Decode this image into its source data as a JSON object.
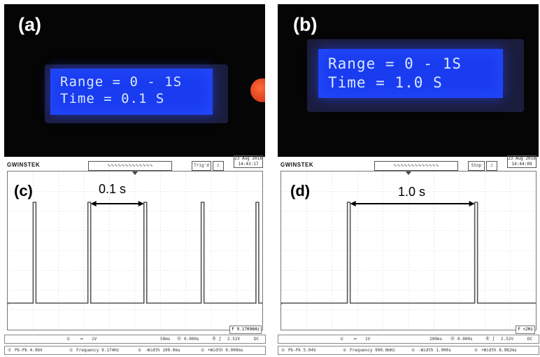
{
  "photos": [
    {
      "label": "(a)",
      "line1": "Range = 0 - 1S",
      "line2": "Time = 0.1 S"
    },
    {
      "label": "(b)",
      "line1": "Range = 0 - 1S",
      "line2": "Time = 1.0 S"
    }
  ],
  "scopes": [
    {
      "label": "(c)",
      "brand": "GWINSTEK",
      "mode": "Trig'd",
      "date": "23 Aug 2018",
      "time": "14:43:17",
      "annotation": "0.1 s",
      "ch_scale": "1V",
      "timebase": "50ms",
      "offset": "0.000s",
      "trig_level": "2.52V",
      "coupling": "DC",
      "freq_box": "9.17096Hz",
      "meas": [
        "Pk-Pk 4.96V",
        "Frequency 9.174Hz",
        "-Width 100.0ms",
        "+Width 9.000ms"
      ],
      "pulse_x": [
        0.1,
        0.315,
        0.535,
        0.76,
        0.975
      ]
    },
    {
      "label": "(d)",
      "brand": "GWINSTEK",
      "mode": "Stop",
      "date": "23 Aug 2018",
      "time": "14:44:09",
      "annotation": "1.0 s",
      "ch_scale": "1V",
      "timebase": "200ms",
      "offset": "0.000s",
      "trig_level": "2.52V",
      "coupling": "DC",
      "freq_box": "<2Hz",
      "meas": [
        "Pk-Pk 5.04V",
        "Frequency 990.0mHz",
        "-Width 1.000s",
        "+Width 8.982ms"
      ],
      "pulse_x": [
        0.26,
        0.76
      ]
    }
  ]
}
